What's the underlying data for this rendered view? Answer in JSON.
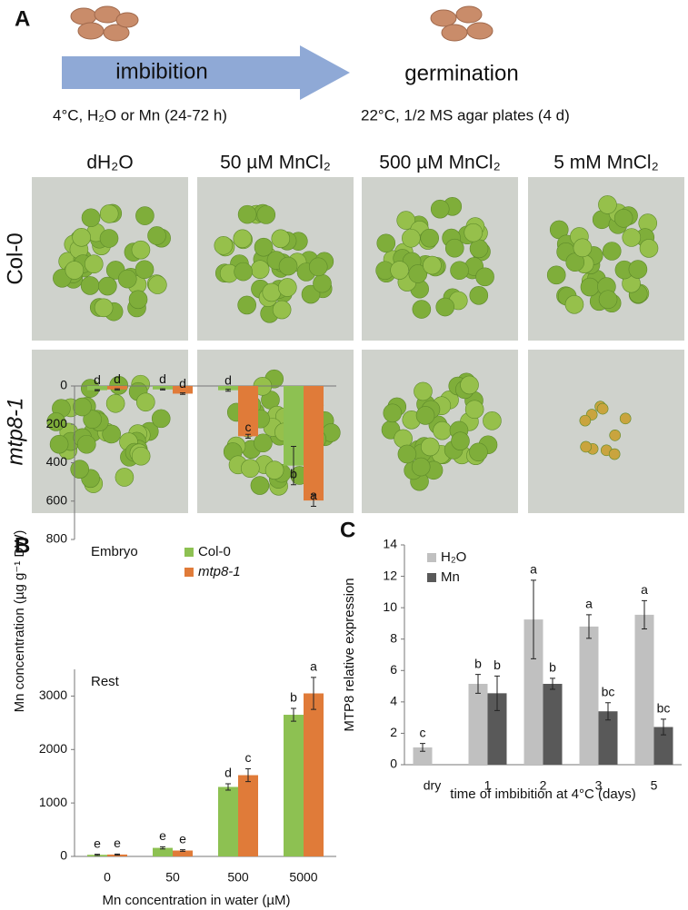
{
  "panel_a": {
    "label": "A",
    "arrow_text": "imbibition",
    "germination_text": "germination",
    "imbibition_conditions": "4°C, H₂O or Mn (24-72 h)",
    "germination_conditions": "22°C, 1/2 MS agar plates (4 d)",
    "columns": [
      "dH₂O",
      "50 µM MnCl₂",
      "500 µM MnCl₂",
      "5 mM MnCl₂"
    ],
    "rows": [
      "Col-0",
      "mtp8-1"
    ]
  },
  "panel_b_label": "B",
  "panel_c_label": "C",
  "chart_data": [
    {
      "type": "bar",
      "subtitle": "Embryo",
      "ylabel": "Mn concentration (µg g⁻¹ DW)",
      "ylim": [
        0,
        800
      ],
      "yticks": [
        0,
        200,
        400,
        600,
        800
      ],
      "legend": "top-center",
      "series": [
        {
          "name": "Col-0",
          "color": "#8dc152",
          "values": [
            22,
            18,
            22,
            415
          ],
          "errors": [
            3,
            3,
            5,
            100
          ],
          "letters": [
            "d",
            "d",
            "d",
            "b"
          ]
        },
        {
          "name": "mtp8-1",
          "color": "#e07b39",
          "values": [
            18,
            40,
            262,
            597
          ],
          "errors": [
            3,
            4,
            10,
            30
          ],
          "letters": [
            "d",
            "d",
            "c",
            "a"
          ]
        }
      ]
    },
    {
      "type": "bar",
      "subtitle": "Rest",
      "xlabel": "Mn concentration in water (µM)",
      "categories": [
        "0",
        "50",
        "500",
        "5000"
      ],
      "ylim": [
        0,
        3500
      ],
      "yticks": [
        0,
        1000,
        2000,
        3000
      ],
      "series": [
        {
          "name": "Col-0",
          "color": "#8dc152",
          "values": [
            30,
            160,
            1300,
            2650
          ],
          "errors": [
            10,
            20,
            60,
            120
          ],
          "letters": [
            "e",
            "e",
            "d",
            "b"
          ]
        },
        {
          "name": "mtp8-1",
          "color": "#e07b39",
          "values": [
            35,
            110,
            1520,
            3050
          ],
          "errors": [
            10,
            15,
            120,
            300
          ],
          "letters": [
            "e",
            "e",
            "c",
            "a"
          ]
        }
      ]
    },
    {
      "type": "bar",
      "ylabel": "MTP8 relative expression",
      "xlabel": "time of imbibition at 4°C (days)",
      "categories": [
        "dry",
        "1",
        "2",
        "3",
        "5"
      ],
      "ylim": [
        0,
        14
      ],
      "yticks": [
        0,
        2,
        4,
        6,
        8,
        10,
        12,
        14
      ],
      "legend": "top-left",
      "series": [
        {
          "name": "H₂O",
          "color": "#c0c0c0",
          "values": [
            1.1,
            5.15,
            9.25,
            8.8,
            9.55
          ],
          "errors": [
            0.25,
            0.6,
            2.5,
            0.75,
            0.9
          ],
          "letters": [
            "c",
            "b",
            "a",
            "a",
            "a"
          ]
        },
        {
          "name": "Mn",
          "color": "#595959",
          "values": [
            null,
            4.55,
            5.15,
            3.4,
            2.4
          ],
          "errors": [
            null,
            1.1,
            0.35,
            0.55,
            0.5
          ],
          "letters": [
            null,
            "b",
            "b",
            "bc",
            "bc"
          ]
        }
      ]
    }
  ]
}
